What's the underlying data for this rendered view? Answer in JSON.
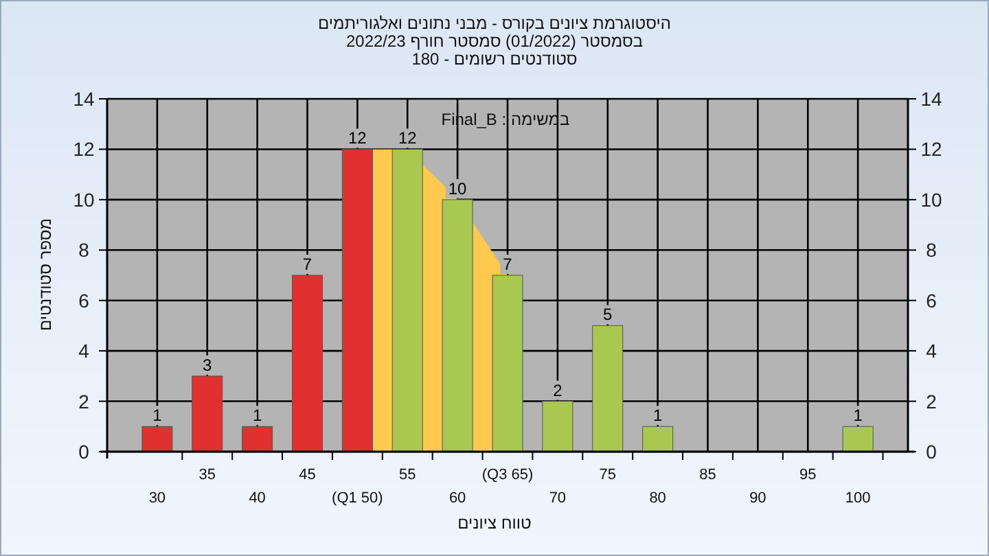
{
  "chart_data": {
    "type": "bar",
    "title": "היסטוגרמת ציונים בקורס - מבני נתונים ואלגוריתמים",
    "subtitle": "בסמסטר  (01/2022)  סמסטר חורף 2022/23",
    "xlabel": "טווח ציונים",
    "ylabel": "מספר סטודנטים",
    "annotations": [
      "סטודנטים רשומים - 180",
      "במשימה : Final_B"
    ],
    "categories": [
      "30",
      "35",
      "40",
      "45",
      "(Q1 50)",
      "55",
      "60",
      "(Q3 65)",
      "70",
      "75",
      "80",
      "85",
      "90",
      "95",
      "100"
    ],
    "series": [
      {
        "type": "area",
        "color": "#ffc94d",
        "values": [
          null,
          null,
          null,
          null,
          12,
          12,
          10,
          7,
          null,
          null,
          null,
          null,
          null,
          null,
          null
        ]
      },
      {
        "colors": [
          "#e03030",
          "#e03030",
          "#e03030",
          "#e03030",
          "#e03030",
          "#a8c850",
          "#a8c850",
          "#a8c850",
          "#a8c850",
          "#a8c850",
          "#a8c850",
          "#a8c850",
          "#a8c850",
          "#a8c850",
          "#a8c850"
        ],
        "values": [
          1,
          3,
          1,
          7,
          12,
          12,
          10,
          7,
          2,
          5,
          1,
          0,
          0,
          0,
          1
        ],
        "value_labels": [
          "1",
          "3",
          "1",
          "7",
          "12",
          "12",
          "10",
          "7",
          "2",
          "5",
          "1",
          null,
          null,
          null,
          "1"
        ]
      }
    ],
    "ylim": [
      0,
      14
    ],
    "yticks": [
      0,
      2,
      4,
      6,
      8,
      10,
      12,
      14
    ],
    "y2lim": [
      0,
      14
    ],
    "y2ticks": [
      0,
      2,
      4,
      6,
      8,
      10,
      12,
      14
    ],
    "grid": true
  }
}
